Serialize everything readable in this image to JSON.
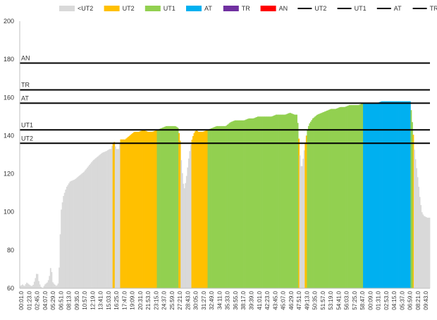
{
  "chart_data": {
    "type": "area",
    "ylim": [
      60,
      200
    ],
    "yticks": [
      60,
      80,
      100,
      120,
      140,
      160,
      180,
      200
    ],
    "grid": false,
    "legend_position": "top",
    "legend": [
      {
        "name": "<UT2",
        "kind": "area",
        "color": "#d9d9d9"
      },
      {
        "name": "UT2",
        "kind": "area",
        "color": "#ffc000"
      },
      {
        "name": "UT1",
        "kind": "area",
        "color": "#92d050"
      },
      {
        "name": "AT",
        "kind": "area",
        "color": "#00b0f0"
      },
      {
        "name": "TR",
        "kind": "area",
        "color": "#7030a0"
      },
      {
        "name": "AN",
        "kind": "area",
        "color": "#ff0000"
      },
      {
        "name": "UT2",
        "kind": "line",
        "color": "#000000"
      },
      {
        "name": "UT1",
        "kind": "line",
        "color": "#000000"
      },
      {
        "name": "AT",
        "kind": "line",
        "color": "#000000"
      },
      {
        "name": "TR",
        "kind": "line",
        "color": "#000000"
      },
      {
        "name": "AN",
        "kind": "line",
        "color": "#000000"
      }
    ],
    "x_tick_labels": [
      "00:01.0",
      "01:23.0",
      "02:45.0",
      "04:07.0",
      "05:29.0",
      "06:51.0",
      "08:13.0",
      "09:35.0",
      "10:57.0",
      "12:19.0",
      "13:41.0",
      "15:03.0",
      "16:25.0",
      "17:47.0",
      "19:09.0",
      "20:31.0",
      "21:53.0",
      "23:15.0",
      "24:37.0",
      "25:59.0",
      "27:21.0",
      "28:43.0",
      "30:05.0",
      "31:27.0",
      "32:49.0",
      "34:11.0",
      "35:33.0",
      "36:55.0",
      "38:17.0",
      "39:39.0",
      "41:01.0",
      "42:23.0",
      "43:45.0",
      "45:07.0",
      "46:29.0",
      "47:51.0",
      "49:13.0",
      "50:35.0",
      "51:57.0",
      "53:19.0",
      "54:41.0",
      "56:03.0",
      "57:25.0",
      "58:47.0",
      "00:09.0",
      "01:31.0",
      "02:53.0",
      "04:15.0",
      "05:37.0",
      "06:59.0",
      "08:21.0",
      "09:43.0"
    ],
    "thresholds": [
      {
        "name": "UT2",
        "value": 136
      },
      {
        "name": "UT1",
        "value": 143
      },
      {
        "name": "AT",
        "value": 157
      },
      {
        "name": "TR",
        "value": 164
      },
      {
        "name": "AN",
        "value": 178
      }
    ],
    "zone_colors": {
      "<UT2": "#d9d9d9",
      "UT2": "#ffc000",
      "UT1": "#92d050",
      "AT": "#00b0f0",
      "TR": "#7030a0",
      "AN": "#ff0000"
    },
    "heart_rate_points": [
      [
        0.0,
        61
      ],
      [
        0.6,
        62
      ],
      [
        1.0,
        61
      ],
      [
        1.5,
        63
      ],
      [
        2.0,
        62
      ],
      [
        2.6,
        61
      ],
      [
        3.0,
        62
      ],
      [
        3.5,
        66
      ],
      [
        3.8,
        69
      ],
      [
        4.1,
        64
      ],
      [
        4.5,
        61
      ],
      [
        5.0,
        60
      ],
      [
        5.5,
        62
      ],
      [
        6.0,
        63
      ],
      [
        6.4,
        65
      ],
      [
        6.8,
        72
      ],
      [
        7.2,
        63
      ],
      [
        7.6,
        62
      ],
      [
        8.0,
        61
      ],
      [
        8.5,
        63
      ],
      [
        9.0,
        100
      ],
      [
        9.5,
        108
      ],
      [
        10.2,
        113
      ],
      [
        11.0,
        116
      ],
      [
        12.0,
        117
      ],
      [
        13.0,
        119
      ],
      [
        14.0,
        121
      ],
      [
        15.0,
        124
      ],
      [
        16.0,
        127
      ],
      [
        17.0,
        129
      ],
      [
        18.0,
        131
      ],
      [
        19.0,
        132
      ],
      [
        19.6,
        133
      ],
      [
        20.0,
        133
      ],
      [
        20.3,
        136
      ],
      [
        20.6,
        137
      ],
      [
        21.0,
        133
      ],
      [
        21.6,
        133
      ],
      [
        22.0,
        138
      ],
      [
        23.0,
        138
      ],
      [
        24.0,
        140
      ],
      [
        25.0,
        142
      ],
      [
        26.0,
        142
      ],
      [
        27.0,
        143
      ],
      [
        28.0,
        142
      ],
      [
        29.0,
        142
      ],
      [
        30.0,
        143
      ],
      [
        31.0,
        144
      ],
      [
        32.0,
        145
      ],
      [
        33.0,
        145
      ],
      [
        34.0,
        145
      ],
      [
        34.6,
        144
      ],
      [
        35.0,
        138
      ],
      [
        35.3,
        125
      ],
      [
        35.7,
        115
      ],
      [
        36.0,
        112
      ],
      [
        36.5,
        120
      ],
      [
        37.0,
        130
      ],
      [
        37.5,
        137
      ],
      [
        38.0,
        141
      ],
      [
        38.5,
        143
      ],
      [
        39.0,
        142
      ],
      [
        40.0,
        142
      ],
      [
        41.0,
        143
      ],
      [
        42.0,
        144
      ],
      [
        43.0,
        145
      ],
      [
        44.0,
        145
      ],
      [
        45.0,
        145
      ],
      [
        46.0,
        147
      ],
      [
        47.0,
        148
      ],
      [
        48.0,
        148
      ],
      [
        49.0,
        148
      ],
      [
        50.0,
        149
      ],
      [
        51.0,
        149
      ],
      [
        52.0,
        150
      ],
      [
        53.0,
        150
      ],
      [
        54.0,
        150
      ],
      [
        55.0,
        150
      ],
      [
        56.0,
        151
      ],
      [
        57.0,
        151
      ],
      [
        58.0,
        151
      ],
      [
        59.0,
        152
      ],
      [
        60.0,
        151
      ],
      [
        60.5,
        151
      ],
      [
        60.8,
        145
      ],
      [
        61.1,
        132
      ],
      [
        61.4,
        124
      ],
      [
        61.7,
        124
      ],
      [
        62.0,
        130
      ],
      [
        62.4,
        137
      ],
      [
        62.8,
        143
      ],
      [
        63.2,
        146
      ],
      [
        64.0,
        149
      ],
      [
        65.0,
        151
      ],
      [
        66.0,
        152
      ],
      [
        67.0,
        153
      ],
      [
        68.0,
        154
      ],
      [
        69.0,
        154
      ],
      [
        70.0,
        155
      ],
      [
        71.0,
        155
      ],
      [
        72.0,
        156
      ],
      [
        73.0,
        156
      ],
      [
        74.0,
        156
      ],
      [
        75.0,
        157
      ],
      [
        76.0,
        157
      ],
      [
        77.0,
        157
      ],
      [
        78.0,
        157
      ],
      [
        79.0,
        158
      ],
      [
        80.0,
        158
      ],
      [
        81.0,
        158
      ],
      [
        82.0,
        158
      ],
      [
        83.0,
        158
      ],
      [
        84.0,
        158
      ],
      [
        85.0,
        158
      ],
      [
        85.3,
        158
      ],
      [
        85.6,
        150
      ],
      [
        85.9,
        142
      ],
      [
        86.2,
        132
      ],
      [
        86.6,
        124
      ],
      [
        87.0,
        116
      ],
      [
        87.4,
        107
      ],
      [
        87.8,
        100
      ],
      [
        88.2,
        98
      ],
      [
        89.0,
        97
      ],
      [
        89.6,
        97
      ]
    ]
  }
}
